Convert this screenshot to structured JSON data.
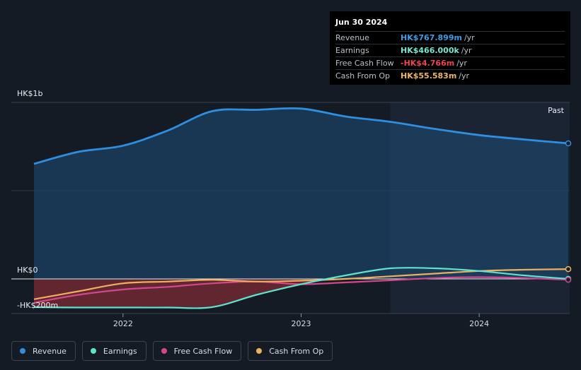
{
  "tooltip": {
    "date": "Jun 30 2024",
    "rows": [
      {
        "label": "Revenue",
        "value": "HK$767.899m",
        "unit": "/yr",
        "color": "#3d9de6"
      },
      {
        "label": "Earnings",
        "value": "HK$466.000k",
        "unit": "/yr",
        "color": "#77e8cf"
      },
      {
        "label": "Free Cash Flow",
        "value": "-HK$4.766m",
        "unit": "/yr",
        "color": "#f0444f"
      },
      {
        "label": "Cash From Op",
        "value": "HK$55.583m",
        "unit": "/yr",
        "color": "#efb667"
      }
    ]
  },
  "legend": [
    {
      "label": "Revenue",
      "color": "#2e8fe0"
    },
    {
      "label": "Earnings",
      "color": "#5ee3cd"
    },
    {
      "label": "Free Cash Flow",
      "color": "#d4478f"
    },
    {
      "label": "Cash From Op",
      "color": "#efb05d"
    }
  ],
  "chart_data": {
    "type": "line",
    "ylabels": [
      "HK$1b",
      "HK$0",
      "-HK$200m"
    ],
    "xticks": [
      {
        "label": "2022",
        "x": 2022.0
      },
      {
        "label": "2023",
        "x": 2023.0
      },
      {
        "label": "2024",
        "x": 2024.0
      }
    ],
    "past_label": "Past",
    "ylim": [
      -200,
      1000
    ],
    "xlim": [
      2021.5,
      2024.5
    ],
    "past_start": 2023.5,
    "colors": {
      "revenue": "#2e8fe0",
      "earnings": "#5ee3cd",
      "fcf": "#d4478f",
      "cfo": "#efb05d"
    },
    "series": [
      {
        "name": "Revenue",
        "key": "revenue",
        "x": [
          2021.5,
          2021.75,
          2022.0,
          2022.25,
          2022.5,
          2022.75,
          2023.0,
          2023.25,
          2023.5,
          2023.75,
          2024.0,
          2024.25,
          2024.5
        ],
        "values": [
          652,
          720,
          755,
          840,
          950,
          958,
          965,
          920,
          890,
          850,
          815,
          790,
          768
        ]
      },
      {
        "name": "Earnings",
        "key": "earnings",
        "x": [
          2021.5,
          2021.75,
          2022.0,
          2022.25,
          2022.5,
          2022.75,
          2023.0,
          2023.25,
          2023.5,
          2023.75,
          2024.0,
          2024.25,
          2024.5
        ],
        "values": [
          -160,
          -162,
          -162,
          -162,
          -160,
          -90,
          -30,
          20,
          60,
          60,
          45,
          20,
          0.466
        ]
      },
      {
        "name": "Free Cash Flow",
        "key": "fcf",
        "x": [
          2021.5,
          2021.75,
          2022.0,
          2022.25,
          2022.5,
          2022.75,
          2023.0,
          2023.25,
          2023.5,
          2023.75,
          2024.0,
          2024.25,
          2024.5
        ],
        "values": [
          -135,
          -90,
          -60,
          -45,
          -25,
          -15,
          -30,
          -20,
          -8,
          5,
          10,
          5,
          -4.766
        ]
      },
      {
        "name": "Cash From Op",
        "key": "cfo",
        "x": [
          2021.5,
          2021.75,
          2022.0,
          2022.25,
          2022.5,
          2022.75,
          2023.0,
          2023.25,
          2023.5,
          2023.75,
          2024.0,
          2024.25,
          2024.5
        ],
        "values": [
          -115,
          -70,
          -25,
          -15,
          -5,
          -15,
          -10,
          0,
          15,
          30,
          45,
          52,
          55.583
        ]
      }
    ]
  }
}
